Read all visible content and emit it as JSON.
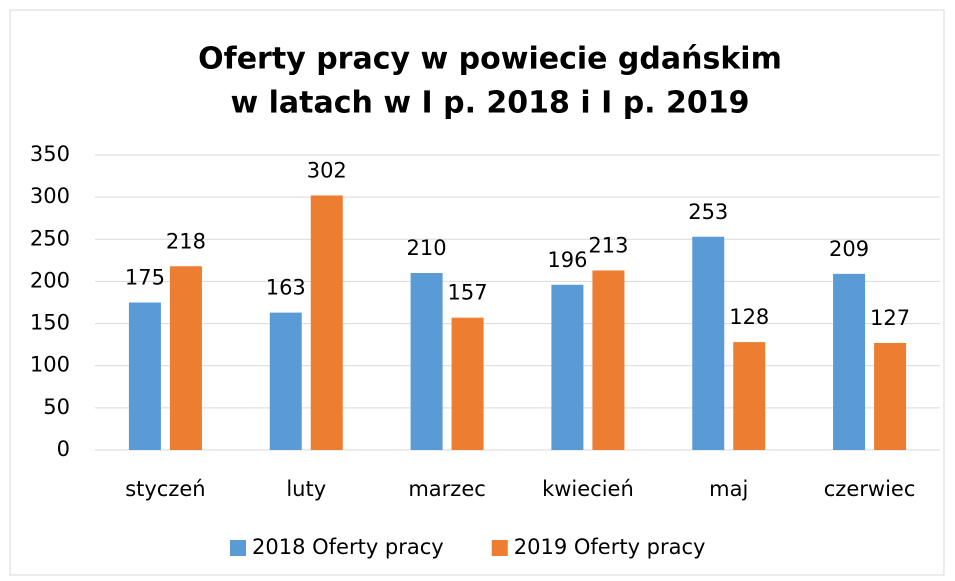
{
  "chart_data": {
    "type": "bar",
    "title": [
      "Oferty pracy w powiecie gdańskim",
      "w latach w I p. 2018 i I p. 2019"
    ],
    "categories": [
      "styczeń",
      "luty",
      "marzec",
      "kwiecień",
      "maj",
      "czerwiec"
    ],
    "series": [
      {
        "name": "2018 Oferty pracy",
        "color": "#5b9bd5",
        "values": [
          175,
          163,
          210,
          196,
          253,
          209
        ]
      },
      {
        "name": "2019 Oferty pracy",
        "color": "#ed7d31",
        "values": [
          218,
          302,
          157,
          213,
          128,
          127
        ]
      }
    ],
    "ylim": [
      0,
      350
    ],
    "yticks": [
      0,
      50,
      100,
      150,
      200,
      250,
      300,
      350
    ],
    "grid": true,
    "legend": "bottom"
  }
}
